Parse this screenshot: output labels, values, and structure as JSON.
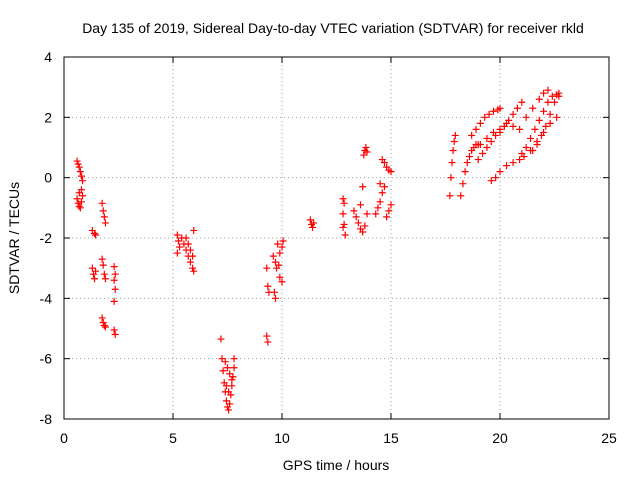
{
  "chart_data": {
    "type": "scatter",
    "title": "Day 135 of 2019, Sidereal Day-to-day VTEC variation (SDTVAR) for receiver rkld",
    "xlabel": "GPS time / hours",
    "ylabel": "SDTVAR / TECUs",
    "xlim": [
      0,
      25
    ],
    "ylim": [
      -8,
      4
    ],
    "xticks": [
      0,
      5,
      10,
      15,
      20,
      25
    ],
    "yticks": [
      -8,
      -6,
      -4,
      -2,
      0,
      2,
      4
    ],
    "grid": true,
    "marker": "+",
    "color": "#ff0000",
    "series": [
      {
        "points": [
          [
            0.6,
            0.55
          ],
          [
            0.65,
            0.45
          ],
          [
            0.7,
            0.35
          ],
          [
            0.75,
            0.2
          ],
          [
            0.8,
            0.05
          ],
          [
            0.85,
            -0.1
          ],
          [
            0.6,
            -0.7
          ],
          [
            0.65,
            -0.85
          ],
          [
            0.7,
            -0.95
          ],
          [
            0.75,
            -1.0
          ],
          [
            0.8,
            -0.8
          ],
          [
            0.85,
            -0.6
          ],
          [
            0.7,
            -0.5
          ],
          [
            0.8,
            -0.4
          ],
          [
            1.3,
            -1.75
          ],
          [
            1.4,
            -1.85
          ],
          [
            1.45,
            -1.9
          ],
          [
            1.3,
            -3.0
          ],
          [
            1.35,
            -3.2
          ],
          [
            1.4,
            -3.35
          ],
          [
            1.45,
            -3.1
          ],
          [
            1.75,
            -0.85
          ],
          [
            1.8,
            -1.1
          ],
          [
            1.85,
            -1.3
          ],
          [
            1.9,
            -1.5
          ],
          [
            1.75,
            -2.7
          ],
          [
            1.8,
            -2.9
          ],
          [
            1.85,
            -3.2
          ],
          [
            1.9,
            -3.35
          ],
          [
            1.75,
            -4.65
          ],
          [
            1.8,
            -4.8
          ],
          [
            1.85,
            -4.9
          ],
          [
            1.9,
            -4.95
          ],
          [
            2.3,
            -2.95
          ],
          [
            2.35,
            -3.2
          ],
          [
            2.3,
            -3.4
          ],
          [
            2.35,
            -3.7
          ],
          [
            2.3,
            -4.1
          ],
          [
            2.3,
            -5.05
          ],
          [
            2.35,
            -5.2
          ],
          [
            5.2,
            -1.9
          ],
          [
            5.25,
            -2.1
          ],
          [
            5.3,
            -2.3
          ],
          [
            5.2,
            -2.5
          ],
          [
            5.4,
            -2.0
          ],
          [
            5.5,
            -2.2
          ],
          [
            5.6,
            -2.4
          ],
          [
            5.7,
            -2.6
          ],
          [
            5.8,
            -2.8
          ],
          [
            5.9,
            -3.0
          ],
          [
            5.95,
            -3.1
          ],
          [
            5.6,
            -2.0
          ],
          [
            5.7,
            -2.2
          ],
          [
            5.8,
            -2.4
          ],
          [
            5.9,
            -2.6
          ],
          [
            5.95,
            -1.75
          ],
          [
            7.2,
            -5.35
          ],
          [
            7.25,
            -6.0
          ],
          [
            7.3,
            -6.4
          ],
          [
            7.35,
            -6.8
          ],
          [
            7.4,
            -7.1
          ],
          [
            7.45,
            -7.4
          ],
          [
            7.5,
            -7.6
          ],
          [
            7.55,
            -7.7
          ],
          [
            7.6,
            -7.5
          ],
          [
            7.65,
            -7.2
          ],
          [
            7.7,
            -6.9
          ],
          [
            7.75,
            -6.6
          ],
          [
            7.8,
            -6.3
          ],
          [
            7.4,
            -6.1
          ],
          [
            7.5,
            -6.3
          ],
          [
            7.6,
            -6.5
          ],
          [
            7.7,
            -6.7
          ],
          [
            7.8,
            -6.0
          ],
          [
            7.45,
            -6.9
          ],
          [
            7.55,
            -7.1
          ],
          [
            9.3,
            -3.0
          ],
          [
            9.35,
            -3.6
          ],
          [
            9.4,
            -3.8
          ],
          [
            9.3,
            -5.25
          ],
          [
            9.35,
            -5.45
          ],
          [
            9.6,
            -2.6
          ],
          [
            9.7,
            -2.8
          ],
          [
            9.75,
            -3.0
          ],
          [
            9.65,
            -3.8
          ],
          [
            9.7,
            -4.0
          ],
          [
            9.8,
            -2.2
          ],
          [
            9.9,
            -2.5
          ],
          [
            10.0,
            -2.3
          ],
          [
            10.05,
            -2.1
          ],
          [
            9.9,
            -3.3
          ],
          [
            10.0,
            -3.45
          ],
          [
            9.85,
            -2.9
          ],
          [
            11.3,
            -1.4
          ],
          [
            11.35,
            -1.55
          ],
          [
            11.4,
            -1.65
          ],
          [
            11.45,
            -1.5
          ],
          [
            12.8,
            -0.7
          ],
          [
            12.85,
            -0.85
          ],
          [
            12.8,
            -1.2
          ],
          [
            12.85,
            -1.55
          ],
          [
            12.8,
            -1.65
          ],
          [
            12.9,
            -1.9
          ],
          [
            13.3,
            -1.1
          ],
          [
            13.4,
            -1.3
          ],
          [
            13.5,
            -1.5
          ],
          [
            13.6,
            -1.7
          ],
          [
            13.7,
            -1.8
          ],
          [
            13.8,
            -1.6
          ],
          [
            13.9,
            -1.2
          ],
          [
            13.6,
            -0.9
          ],
          [
            13.7,
            -0.3
          ],
          [
            13.75,
            0.75
          ],
          [
            13.8,
            0.9
          ],
          [
            13.85,
            1.0
          ],
          [
            13.9,
            0.85
          ],
          [
            14.3,
            -1.2
          ],
          [
            14.4,
            -1.0
          ],
          [
            14.5,
            -0.8
          ],
          [
            14.6,
            -0.5
          ],
          [
            14.7,
            -0.3
          ],
          [
            14.8,
            -1.3
          ],
          [
            14.9,
            -1.1
          ],
          [
            15.0,
            -0.9
          ],
          [
            14.6,
            0.6
          ],
          [
            14.7,
            0.5
          ],
          [
            14.8,
            0.35
          ],
          [
            14.9,
            0.25
          ],
          [
            15.0,
            0.2
          ],
          [
            14.5,
            -0.2
          ],
          [
            17.7,
            -0.6
          ],
          [
            17.75,
            0.0
          ],
          [
            17.8,
            0.5
          ],
          [
            17.85,
            0.9
          ],
          [
            17.9,
            1.2
          ],
          [
            17.95,
            1.4
          ],
          [
            18.2,
            -0.6
          ],
          [
            18.3,
            -0.2
          ],
          [
            18.4,
            0.2
          ],
          [
            18.5,
            0.5
          ],
          [
            18.6,
            0.7
          ],
          [
            18.7,
            0.9
          ],
          [
            18.8,
            1.0
          ],
          [
            18.9,
            1.1
          ],
          [
            19.0,
            1.1
          ],
          [
            18.7,
            1.4
          ],
          [
            18.9,
            1.6
          ],
          [
            19.1,
            1.8
          ],
          [
            19.3,
            2.0
          ],
          [
            19.5,
            2.1
          ],
          [
            19.7,
            2.2
          ],
          [
            19.9,
            2.25
          ],
          [
            20.0,
            2.3
          ],
          [
            19.0,
            0.6
          ],
          [
            19.2,
            0.8
          ],
          [
            19.4,
            1.0
          ],
          [
            19.6,
            1.2
          ],
          [
            19.8,
            1.4
          ],
          [
            20.0,
            1.5
          ],
          [
            20.2,
            1.7
          ],
          [
            20.4,
            1.9
          ],
          [
            20.6,
            2.1
          ],
          [
            20.8,
            2.3
          ],
          [
            21.0,
            2.5
          ],
          [
            19.1,
            1.1
          ],
          [
            19.4,
            1.3
          ],
          [
            19.7,
            1.5
          ],
          [
            20.0,
            1.6
          ],
          [
            20.3,
            1.8
          ],
          [
            20.6,
            1.7
          ],
          [
            20.9,
            1.6
          ],
          [
            21.2,
            2.0
          ],
          [
            21.5,
            2.3
          ],
          [
            21.8,
            2.6
          ],
          [
            22.0,
            2.8
          ],
          [
            22.2,
            2.9
          ],
          [
            19.6,
            -0.1
          ],
          [
            19.8,
            0.0
          ],
          [
            20.0,
            0.2
          ],
          [
            20.3,
            0.4
          ],
          [
            20.6,
            0.5
          ],
          [
            20.9,
            0.6
          ],
          [
            21.1,
            0.7
          ],
          [
            21.4,
            0.9
          ],
          [
            21.7,
            1.2
          ],
          [
            22.0,
            1.5
          ],
          [
            22.3,
            1.8
          ],
          [
            22.6,
            2.0
          ],
          [
            21.5,
            0.9
          ],
          [
            21.7,
            1.1
          ],
          [
            21.9,
            1.4
          ],
          [
            22.1,
            1.7
          ],
          [
            22.3,
            2.1
          ],
          [
            22.5,
            2.5
          ],
          [
            22.7,
            2.8
          ],
          [
            21.0,
            0.8
          ],
          [
            21.2,
            1.0
          ],
          [
            21.4,
            1.3
          ],
          [
            21.6,
            1.6
          ],
          [
            21.8,
            1.9
          ],
          [
            22.0,
            2.2
          ],
          [
            22.2,
            2.5
          ],
          [
            22.4,
            2.7
          ],
          [
            22.6,
            2.75
          ],
          [
            22.7,
            2.7
          ]
        ]
      }
    ]
  }
}
